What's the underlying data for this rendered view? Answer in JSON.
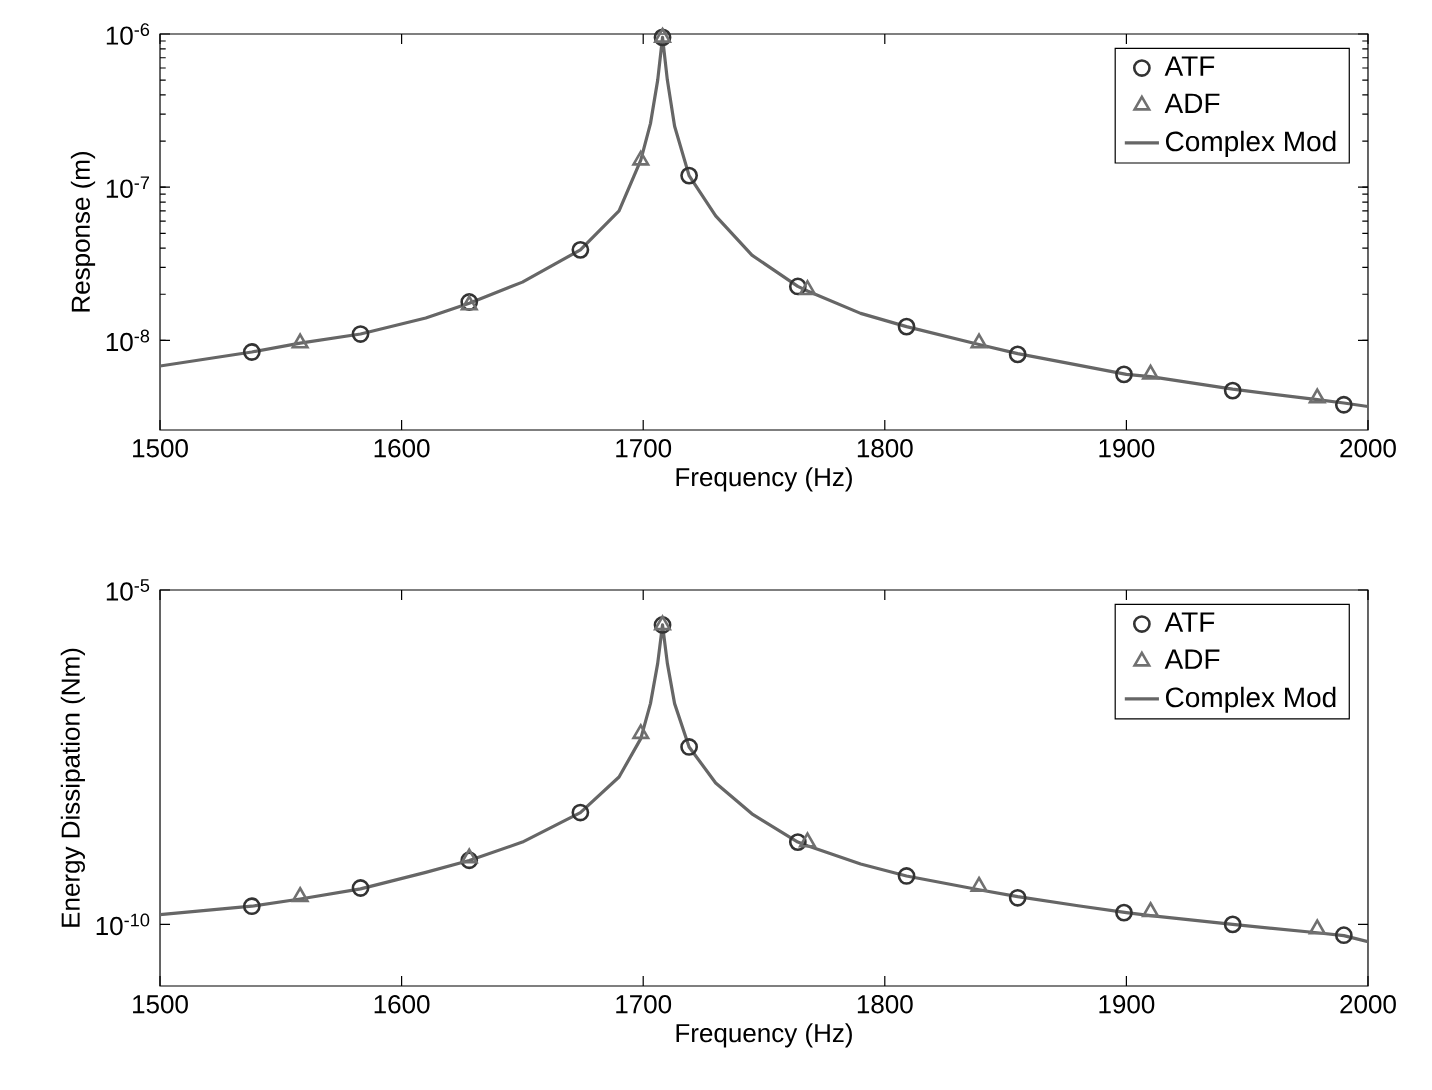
{
  "chart_data": [
    {
      "type": "line",
      "xlabel": "Frequency (Hz)",
      "ylabel": "Response (m)",
      "log": "y",
      "legend": "top right",
      "grid": false,
      "xlim": [
        1500,
        2000
      ],
      "xticks": [
        1500,
        1600,
        1700,
        1800,
        1900,
        2000
      ],
      "ylim": [
        2.6e-09,
        1e-06
      ],
      "yticks": [
        {
          "value": 1e-08,
          "label": "10$^{-8}$"
        },
        {
          "value": 1e-07,
          "label": "10$^{-7}$"
        },
        {
          "value": 1e-06,
          "label": "10$^{-6}$"
        }
      ],
      "series": [
        {
          "name": "ATF",
          "type": "scatter",
          "marker": "circle",
          "color": "#333333",
          "x": [
            1538,
            1583,
            1628,
            1674,
            1708,
            1719,
            1764,
            1809,
            1855,
            1899,
            1944,
            1990
          ],
          "values": [
            8.4e-09,
            1.1e-08,
            1.78e-08,
            3.9e-08,
            9.5e-07,
            1.19e-07,
            2.25e-08,
            1.23e-08,
            8.1e-09,
            6e-09,
            4.7e-09,
            3.8e-09
          ]
        },
        {
          "name": "ADF",
          "type": "scatter",
          "marker": "triangle",
          "color": "#707070",
          "x": [
            1558,
            1628,
            1699,
            1708,
            1768,
            1839,
            1910,
            1979
          ],
          "values": [
            9.6e-09,
            1.7e-08,
            1.5e-07,
            9.5e-07,
            2.14e-08,
            9.6e-09,
            6e-09,
            4.2e-09
          ]
        },
        {
          "name": "Complex Mod",
          "marker": "none",
          "line_style": "solid",
          "color": "#666666",
          "x": [
            1500,
            1538,
            1558,
            1583,
            1610,
            1628,
            1650,
            1674,
            1690,
            1699,
            1703,
            1706,
            1708,
            1710,
            1713,
            1719,
            1730,
            1745,
            1764,
            1768,
            1790,
            1809,
            1839,
            1855,
            1880,
            1900,
            1910,
            1944,
            1979,
            1990,
            2000
          ],
          "values": [
            6.8e-09,
            8.4e-09,
            9.6e-09,
            1.1e-08,
            1.4e-08,
            1.75e-08,
            2.4e-08,
            3.9e-08,
            7e-08,
            1.5e-07,
            2.6e-07,
            5e-07,
            9.5e-07,
            5e-07,
            2.5e-07,
            1.19e-07,
            6.5e-08,
            3.6e-08,
            2.25e-08,
            2.1e-08,
            1.5e-08,
            1.23e-08,
            9.4e-09,
            8.2e-09,
            6.9e-09,
            6e-09,
            5.8e-09,
            4.8e-09,
            4.1e-09,
            3.9e-09,
            3.7e-09
          ]
        }
      ]
    },
    {
      "type": "line",
      "xlabel": "Frequency (Hz)",
      "ylabel": "Energy Dissipation (Nm)",
      "log": "y",
      "legend": "top right",
      "grid": false,
      "xlim": [
        1500,
        2000
      ],
      "xticks": [
        1500,
        1600,
        1700,
        1800,
        1900,
        2000
      ],
      "ylim": [
        1.2e-11,
        1e-05
      ],
      "yticks": [
        {
          "value": 1e-10,
          "label": "10$^{-10}$"
        },
        {
          "value": 1e-05,
          "label": "10$^{-5}$"
        }
      ],
      "series": [
        {
          "name": "ATF",
          "type": "scatter",
          "marker": "circle",
          "color": "#333333",
          "x": [
            1538,
            1583,
            1628,
            1674,
            1708,
            1719,
            1764,
            1809,
            1855,
            1899,
            1944,
            1990
          ],
          "values": [
            1.87e-10,
            3.5e-10,
            9.1e-10,
            4.7e-09,
            3e-06,
            4.5e-08,
            1.7e-09,
            5.3e-10,
            2.5e-10,
            1.5e-10,
            1e-10,
            6.9e-11
          ]
        },
        {
          "name": "ADF",
          "type": "scatter",
          "marker": "triangle",
          "color": "#707070",
          "x": [
            1558,
            1628,
            1699,
            1708,
            1768,
            1839,
            1910,
            1979
          ],
          "values": [
            2.6e-10,
            9.8e-10,
            7.1e-08,
            3e-06,
            1.7e-09,
            3.7e-10,
            1.55e-10,
            8.5e-11
          ]
        },
        {
          "name": "Complex Mod",
          "marker": "none",
          "line_style": "solid",
          "color": "#666666",
          "x": [
            1500,
            1538,
            1558,
            1583,
            1610,
            1628,
            1650,
            1674,
            1690,
            1699,
            1703,
            1706,
            1708,
            1710,
            1713,
            1719,
            1730,
            1745,
            1764,
            1768,
            1790,
            1809,
            1839,
            1855,
            1880,
            1900,
            1910,
            1944,
            1979,
            1990,
            2000
          ],
          "values": [
            1.4e-10,
            1.87e-10,
            2.4e-10,
            3.4e-10,
            6e-10,
            9e-10,
            1.7e-09,
            4.7e-09,
            1.6e-08,
            6e-08,
            2e-07,
            8e-07,
            3e-06,
            8e-07,
            2e-07,
            4.5e-08,
            1.3e-08,
            4.5e-09,
            1.7e-09,
            1.5e-09,
            8e-10,
            5.3e-10,
            3.3e-10,
            2.6e-10,
            1.9e-10,
            1.5e-10,
            1.35e-10,
            1e-10,
            7.5e-11,
            6.8e-11,
            5.5e-11
          ]
        }
      ]
    }
  ]
}
